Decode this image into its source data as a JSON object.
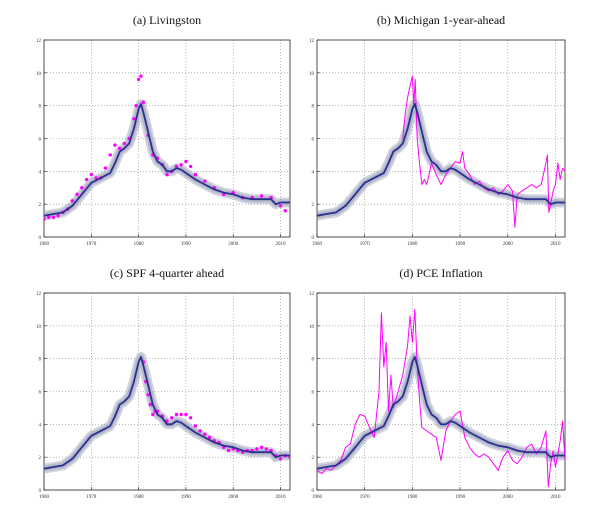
{
  "figure": {
    "panels": [
      {
        "id": "a",
        "title": "(a) Livingston",
        "overlay": "points"
      },
      {
        "id": "b",
        "title": "(b) Michigan 1-year-ahead",
        "overlay": "line"
      },
      {
        "id": "c",
        "title": "(c) SPF 4-quarter ahead",
        "overlay": "points"
      },
      {
        "id": "d",
        "title": "(d) PCE Inflation",
        "overlay": "line"
      }
    ],
    "colors": {
      "trend": "#2b2f8f",
      "band": "#9aa0b8",
      "overlay": "#ff00ff",
      "grid": "#8a8a8a",
      "frame": "#222222"
    }
  },
  "chart_data": [
    {
      "type": "line",
      "title": "(a) Livingston",
      "xlabel": "",
      "ylabel": "",
      "x_ticks": [
        1960,
        1970,
        1980,
        1990,
        2000,
        2010
      ],
      "y_ticks": [
        0,
        2,
        4,
        6,
        8,
        10,
        12
      ],
      "xlim": [
        1960,
        2012
      ],
      "ylim": [
        0,
        12
      ],
      "grid": true,
      "series": [
        {
          "role": "trend",
          "x": [
            1960,
            1962,
            1964,
            1966,
            1968,
            1970,
            1972,
            1974,
            1975,
            1976,
            1977,
            1978,
            1979,
            1980,
            1980.5,
            1981,
            1982,
            1983,
            1984,
            1985,
            1986,
            1987,
            1988,
            1989,
            1990,
            1992,
            1994,
            1996,
            1998,
            2000,
            2002,
            2004,
            2006,
            2008,
            2009,
            2010,
            2012
          ],
          "y": [
            1.3,
            1.4,
            1.5,
            1.9,
            2.6,
            3.3,
            3.6,
            3.9,
            4.5,
            5.2,
            5.4,
            5.7,
            6.6,
            7.8,
            8.1,
            7.6,
            6.4,
            5.2,
            4.6,
            4.4,
            4.0,
            4.0,
            4.2,
            4.1,
            3.9,
            3.5,
            3.2,
            2.9,
            2.7,
            2.6,
            2.4,
            2.3,
            2.3,
            2.3,
            2.0,
            2.1,
            2.1
          ]
        },
        {
          "role": "overlay",
          "x": [
            1960,
            1961,
            1962,
            1963,
            1964,
            1965,
            1966,
            1967,
            1968,
            1969,
            1970,
            1971,
            1972,
            1973,
            1974,
            1975,
            1976,
            1977,
            1978,
            1979,
            1979.5,
            1980,
            1980.5,
            1981,
            1982,
            1983,
            1984,
            1985,
            1986,
            1987,
            1988,
            1989,
            1990,
            1991,
            1992,
            1994,
            1996,
            1998,
            2000,
            2002,
            2004,
            2006,
            2008,
            2010,
            2011
          ],
          "y": [
            1.1,
            1.2,
            1.2,
            1.3,
            1.5,
            1.7,
            2.2,
            2.6,
            3.0,
            3.5,
            3.8,
            3.6,
            3.6,
            4.2,
            5.0,
            5.6,
            5.4,
            5.7,
            6.0,
            7.2,
            8.0,
            9.6,
            9.8,
            8.2,
            6.2,
            5.0,
            4.8,
            4.4,
            3.8,
            4.0,
            4.3,
            4.4,
            4.6,
            4.3,
            3.8,
            3.4,
            3.0,
            2.6,
            2.7,
            2.4,
            2.4,
            2.5,
            2.4,
            1.9,
            1.6
          ]
        }
      ]
    },
    {
      "type": "line",
      "title": "(b) Michigan 1-year-ahead",
      "xlabel": "",
      "ylabel": "",
      "x_ticks": [
        1960,
        1970,
        1980,
        1990,
        2000,
        2010
      ],
      "y_ticks": [
        0,
        2,
        4,
        6,
        8,
        10,
        12
      ],
      "xlim": [
        1960,
        2012
      ],
      "ylim": [
        0,
        12
      ],
      "grid": true,
      "series": [
        {
          "role": "trend",
          "x": [
            1960,
            1962,
            1964,
            1966,
            1968,
            1970,
            1972,
            1974,
            1975,
            1976,
            1977,
            1978,
            1979,
            1980,
            1980.5,
            1981,
            1982,
            1983,
            1984,
            1985,
            1986,
            1987,
            1988,
            1989,
            1990,
            1992,
            1994,
            1996,
            1998,
            2000,
            2002,
            2004,
            2006,
            2008,
            2009,
            2010,
            2012
          ],
          "y": [
            1.3,
            1.4,
            1.5,
            1.9,
            2.6,
            3.3,
            3.6,
            3.9,
            4.5,
            5.2,
            5.4,
            5.7,
            6.6,
            7.8,
            8.1,
            7.6,
            6.4,
            5.2,
            4.6,
            4.4,
            4.0,
            4.0,
            4.2,
            4.1,
            3.9,
            3.5,
            3.2,
            2.9,
            2.7,
            2.6,
            2.4,
            2.3,
            2.3,
            2.3,
            2.0,
            2.1,
            2.1
          ]
        },
        {
          "role": "overlay",
          "x": [
            1978,
            1978.5,
            1979,
            1979.5,
            1980,
            1980.3,
            1980.6,
            1981,
            1981.5,
            1982,
            1982.5,
            1983,
            1983.5,
            1984,
            1985,
            1986,
            1987,
            1988,
            1989,
            1990,
            1990.5,
            1991,
            1992,
            1993,
            1994,
            1995,
            1996,
            1997,
            1998,
            1999,
            2000,
            2001,
            2001.5,
            2002,
            2003,
            2004,
            2005,
            2006,
            2007,
            2008,
            2008.3,
            2008.6,
            2009,
            2009.5,
            2010,
            2010.5,
            2011,
            2011.5,
            2012
          ],
          "y": [
            6.0,
            7.5,
            8.5,
            9.2,
            9.8,
            8.0,
            9.6,
            6.0,
            4.5,
            3.2,
            3.5,
            3.2,
            3.8,
            4.5,
            3.8,
            3.2,
            3.8,
            4.2,
            4.6,
            4.5,
            5.2,
            4.2,
            3.8,
            3.2,
            3.4,
            3.0,
            2.8,
            3.0,
            2.6,
            2.8,
            3.2,
            2.8,
            0.6,
            2.6,
            2.8,
            3.0,
            3.2,
            3.0,
            3.2,
            4.5,
            5.0,
            1.5,
            2.0,
            2.8,
            3.2,
            4.5,
            3.5,
            4.2,
            4.0
          ]
        }
      ]
    },
    {
      "type": "line",
      "title": "(c) SPF 4-quarter ahead",
      "xlabel": "",
      "ylabel": "",
      "x_ticks": [
        1960,
        1970,
        1980,
        1990,
        2000,
        2010
      ],
      "y_ticks": [
        0,
        2,
        4,
        6,
        8,
        10,
        12
      ],
      "xlim": [
        1960,
        2012
      ],
      "ylim": [
        0,
        12
      ],
      "grid": true,
      "series": [
        {
          "role": "trend",
          "x": [
            1960,
            1962,
            1964,
            1966,
            1968,
            1970,
            1972,
            1974,
            1975,
            1976,
            1977,
            1978,
            1979,
            1980,
            1980.5,
            1981,
            1982,
            1983,
            1984,
            1985,
            1986,
            1987,
            1988,
            1989,
            1990,
            1992,
            1994,
            1996,
            1998,
            2000,
            2002,
            2004,
            2006,
            2008,
            2009,
            2010,
            2012
          ],
          "y": [
            1.3,
            1.4,
            1.5,
            1.9,
            2.6,
            3.3,
            3.6,
            3.9,
            4.5,
            5.2,
            5.4,
            5.7,
            6.6,
            7.8,
            8.1,
            7.6,
            6.4,
            5.2,
            4.6,
            4.4,
            4.0,
            4.0,
            4.2,
            4.1,
            3.9,
            3.5,
            3.2,
            2.9,
            2.7,
            2.6,
            2.4,
            2.3,
            2.3,
            2.3,
            2.0,
            2.1,
            2.1
          ]
        },
        {
          "role": "overlay",
          "x": [
            1981,
            1981.5,
            1982,
            1982.5,
            1983,
            1983.5,
            1984,
            1985,
            1986,
            1987,
            1988,
            1989,
            1990,
            1991,
            1992,
            1993,
            1994,
            1995,
            1996,
            1997,
            1998,
            1999,
            2000,
            2001,
            2002,
            2003,
            2004,
            2005,
            2006,
            2007,
            2008,
            2009,
            2010,
            2011,
            2012
          ],
          "y": [
            7.8,
            6.6,
            5.8,
            5.2,
            4.6,
            4.8,
            4.8,
            4.5,
            4.2,
            4.4,
            4.6,
            4.6,
            4.6,
            4.4,
            3.9,
            3.6,
            3.4,
            3.2,
            3.0,
            2.9,
            2.6,
            2.4,
            2.5,
            2.4,
            2.3,
            2.4,
            2.4,
            2.5,
            2.6,
            2.5,
            2.4,
            2.1,
            1.9,
            2.1,
            2.0
          ]
        }
      ]
    },
    {
      "type": "line",
      "title": "(d) PCE Inflation",
      "xlabel": "",
      "ylabel": "",
      "x_ticks": [
        1960,
        1970,
        1980,
        1990,
        2000,
        2010
      ],
      "y_ticks": [
        0,
        2,
        4,
        6,
        8,
        10,
        12
      ],
      "xlim": [
        1960,
        2012
      ],
      "ylim": [
        0,
        12
      ],
      "grid": true,
      "series": [
        {
          "role": "trend",
          "x": [
            1960,
            1962,
            1964,
            1966,
            1968,
            1970,
            1972,
            1974,
            1975,
            1976,
            1977,
            1978,
            1979,
            1980,
            1980.5,
            1981,
            1982,
            1983,
            1984,
            1985,
            1986,
            1987,
            1988,
            1989,
            1990,
            1992,
            1994,
            1996,
            1998,
            2000,
            2002,
            2004,
            2006,
            2008,
            2009,
            2010,
            2012
          ],
          "y": [
            1.3,
            1.4,
            1.5,
            1.9,
            2.6,
            3.3,
            3.6,
            3.9,
            4.5,
            5.2,
            5.4,
            5.7,
            6.6,
            7.8,
            8.1,
            7.6,
            6.4,
            5.2,
            4.6,
            4.4,
            4.0,
            4.0,
            4.2,
            4.1,
            3.9,
            3.5,
            3.2,
            2.9,
            2.7,
            2.6,
            2.4,
            2.3,
            2.3,
            2.3,
            2.0,
            2.1,
            2.1
          ]
        },
        {
          "role": "overlay",
          "x": [
            1960,
            1961,
            1962,
            1963,
            1964,
            1965,
            1966,
            1967,
            1968,
            1969,
            1970,
            1971,
            1972,
            1973,
            1973.5,
            1974,
            1974.5,
            1975,
            1975.5,
            1976,
            1977,
            1978,
            1979,
            1979.5,
            1980,
            1980.5,
            1981,
            1981.5,
            1982,
            1983,
            1984,
            1985,
            1986,
            1987,
            1988,
            1989,
            1990,
            1991,
            1992,
            1993,
            1994,
            1995,
            1996,
            1997,
            1998,
            1999,
            2000,
            2001,
            2002,
            2003,
            2004,
            2005,
            2006,
            2007,
            2008,
            2008.5,
            2009,
            2009.5,
            2010,
            2011,
            2011.5,
            2012
          ],
          "y": [
            1.2,
            1.0,
            1.3,
            1.2,
            1.5,
            1.8,
            2.6,
            2.8,
            4.0,
            4.6,
            4.5,
            3.8,
            3.2,
            6.0,
            10.8,
            7.5,
            9.0,
            4.8,
            7.0,
            5.0,
            6.0,
            7.0,
            8.8,
            10.6,
            9.0,
            11.0,
            7.6,
            5.5,
            3.8,
            3.6,
            3.4,
            3.2,
            1.8,
            3.6,
            4.2,
            4.6,
            4.8,
            3.2,
            2.6,
            2.2,
            2.0,
            2.2,
            2.0,
            1.6,
            1.2,
            2.0,
            2.4,
            1.8,
            1.6,
            2.0,
            2.6,
            2.8,
            2.2,
            2.6,
            3.6,
            0.2,
            1.6,
            2.4,
            1.4,
            3.0,
            4.2,
            1.8
          ]
        }
      ]
    }
  ]
}
